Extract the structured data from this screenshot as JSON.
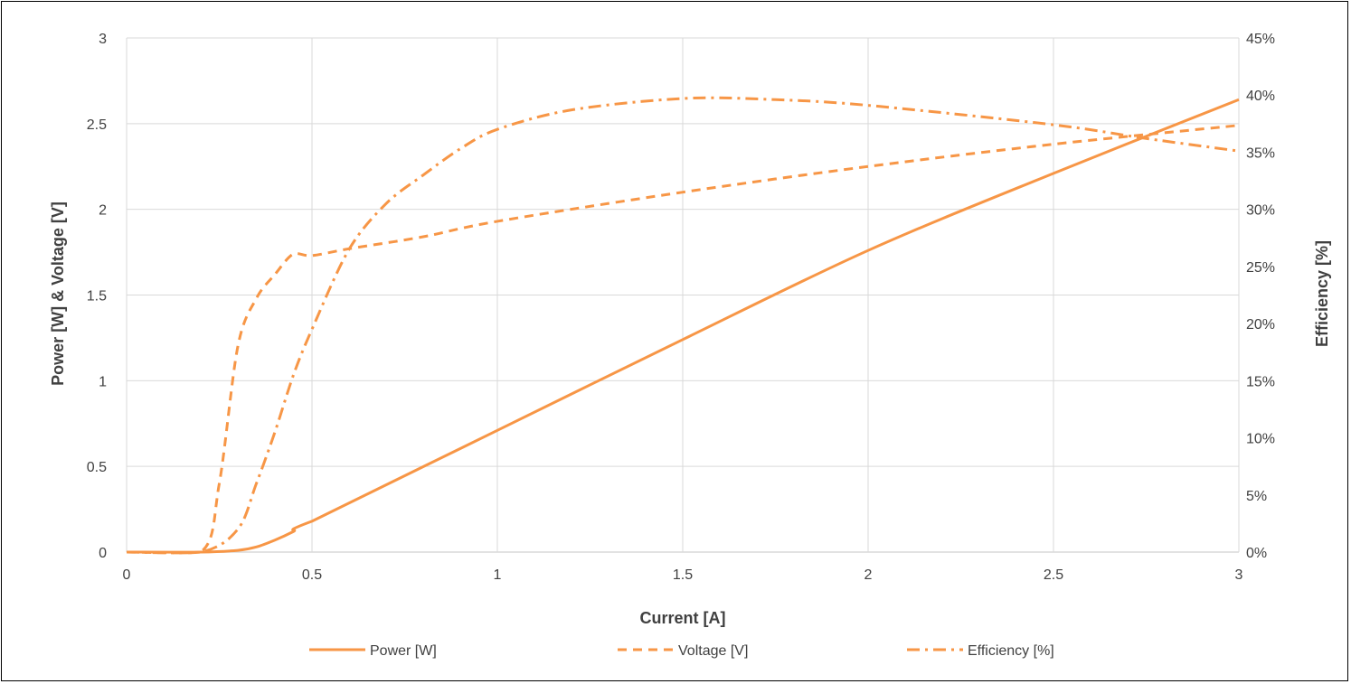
{
  "chart_data": {
    "type": "line",
    "xlabel": "Current [A]",
    "ylabel": "Power [W] & Voltage [V]",
    "y2label": "Efficiency [%]",
    "xlim": [
      0,
      3
    ],
    "ylim": [
      0,
      3
    ],
    "y2lim": [
      0,
      45
    ],
    "x_ticks": [
      "0",
      "0.5",
      "1",
      "1.5",
      "2",
      "2.5",
      "3"
    ],
    "y_ticks": [
      "0",
      "0.5",
      "1",
      "1.5",
      "2",
      "2.5",
      "3"
    ],
    "y2_ticks": [
      "0%",
      "5%",
      "10%",
      "15%",
      "20%",
      "25%",
      "30%",
      "35%",
      "40%",
      "45%"
    ],
    "grid": true,
    "legend_position": "bottom",
    "color": "#F79646",
    "series": [
      {
        "name": "Power [W]",
        "axis": "left",
        "dash": "solid",
        "x": [
          0,
          0.2,
          0.3,
          0.35,
          0.4,
          0.45,
          0.5,
          1.0,
          1.5,
          2.0,
          2.5,
          3.0
        ],
        "y": [
          0,
          0,
          0.01,
          0.03,
          0.07,
          0.12,
          0.18,
          0.71,
          1.24,
          1.76,
          2.21,
          2.64
        ]
      },
      {
        "name": "Voltage [V]",
        "axis": "left",
        "dash": "dash",
        "x": [
          0,
          0.2,
          0.25,
          0.3,
          0.35,
          0.4,
          0.45,
          0.5,
          0.6,
          0.8,
          1.0,
          1.5,
          2.0,
          2.5,
          3.0
        ],
        "y": [
          0,
          0,
          0.4,
          1.2,
          1.48,
          1.62,
          1.74,
          1.73,
          1.77,
          1.84,
          1.93,
          2.1,
          2.25,
          2.38,
          2.49
        ]
      },
      {
        "name": "Efficiency [%]",
        "axis": "right",
        "dash": "dashdot",
        "x": [
          0,
          0.2,
          0.3,
          0.35,
          0.4,
          0.45,
          0.5,
          0.6,
          0.7,
          0.8,
          0.9,
          1.0,
          1.2,
          1.5,
          1.75,
          2.0,
          2.5,
          2.75,
          3.0
        ],
        "y": [
          0,
          0,
          2,
          6,
          10.5,
          15.5,
          19.5,
          26.5,
          30.5,
          33,
          35.3,
          37,
          38.7,
          39.7,
          39.6,
          39.1,
          37.4,
          36.2,
          35.1
        ]
      }
    ]
  }
}
